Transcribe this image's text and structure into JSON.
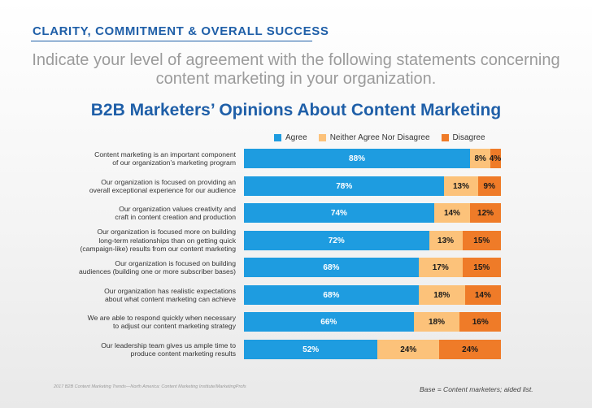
{
  "header": {
    "section_title": "CLARITY, COMMITMENT & OVERALL SUCCESS",
    "question": "Indicate your level of agreement with the following statements concerning content marketing in your organization."
  },
  "chart_data": {
    "type": "bar",
    "orientation": "horizontal-stacked",
    "title": "B2B Marketers’ Opinions About Content Marketing",
    "series_colors": [
      "#1e9ce0",
      "#fcc27a",
      "#ef7b28"
    ],
    "legend": [
      "Agree",
      "Neither Agree Nor Disagree",
      "Disagree"
    ],
    "categories": [
      [
        "Content marketing is an important component",
        "of our organization’s marketing program"
      ],
      [
        "Our organization is focused on providing an",
        "overall exceptional experience for our audience"
      ],
      [
        "Our organization values creativity and",
        "craft in content creation and production"
      ],
      [
        "Our organization is focused more on building",
        "long-term relationships than on getting quick",
        "(campaign-like) results from our content marketing"
      ],
      [
        "Our organization is focused on building",
        "audiences (building one or more subscriber bases)"
      ],
      [
        "Our organization has realistic expectations",
        "about what content marketing can achieve"
      ],
      [
        "We are able to respond quickly when necessary",
        "to adjust our content marketing strategy"
      ],
      [
        "Our leadership team gives us ample time to",
        "produce content marketing results"
      ]
    ],
    "series": [
      {
        "name": "Agree",
        "values": [
          88,
          78,
          74,
          72,
          68,
          68,
          66,
          52
        ]
      },
      {
        "name": "Neither Agree Nor Disagree",
        "values": [
          8,
          13,
          14,
          13,
          17,
          18,
          18,
          24
        ]
      },
      {
        "name": "Disagree",
        "values": [
          4,
          9,
          12,
          15,
          15,
          14,
          16,
          24
        ]
      }
    ],
    "value_labels": [
      [
        "88%",
        "8%",
        "4%"
      ],
      [
        "78%",
        "13%",
        "9%"
      ],
      [
        "74%",
        "14%",
        "12%"
      ],
      [
        "72%",
        "13%",
        "15%"
      ],
      [
        "68%",
        "17%",
        "15%"
      ],
      [
        "68%",
        "18%",
        "14%"
      ],
      [
        "66%",
        "18%",
        "16%"
      ],
      [
        "52%",
        "24%",
        "24%"
      ]
    ],
    "xlim": [
      0,
      100
    ]
  },
  "footer": {
    "source": "2017 B2B Content Marketing Trends—North America: Content Marketing Institute/MarketingProfs",
    "base": "Base = Content marketers; aided list."
  }
}
